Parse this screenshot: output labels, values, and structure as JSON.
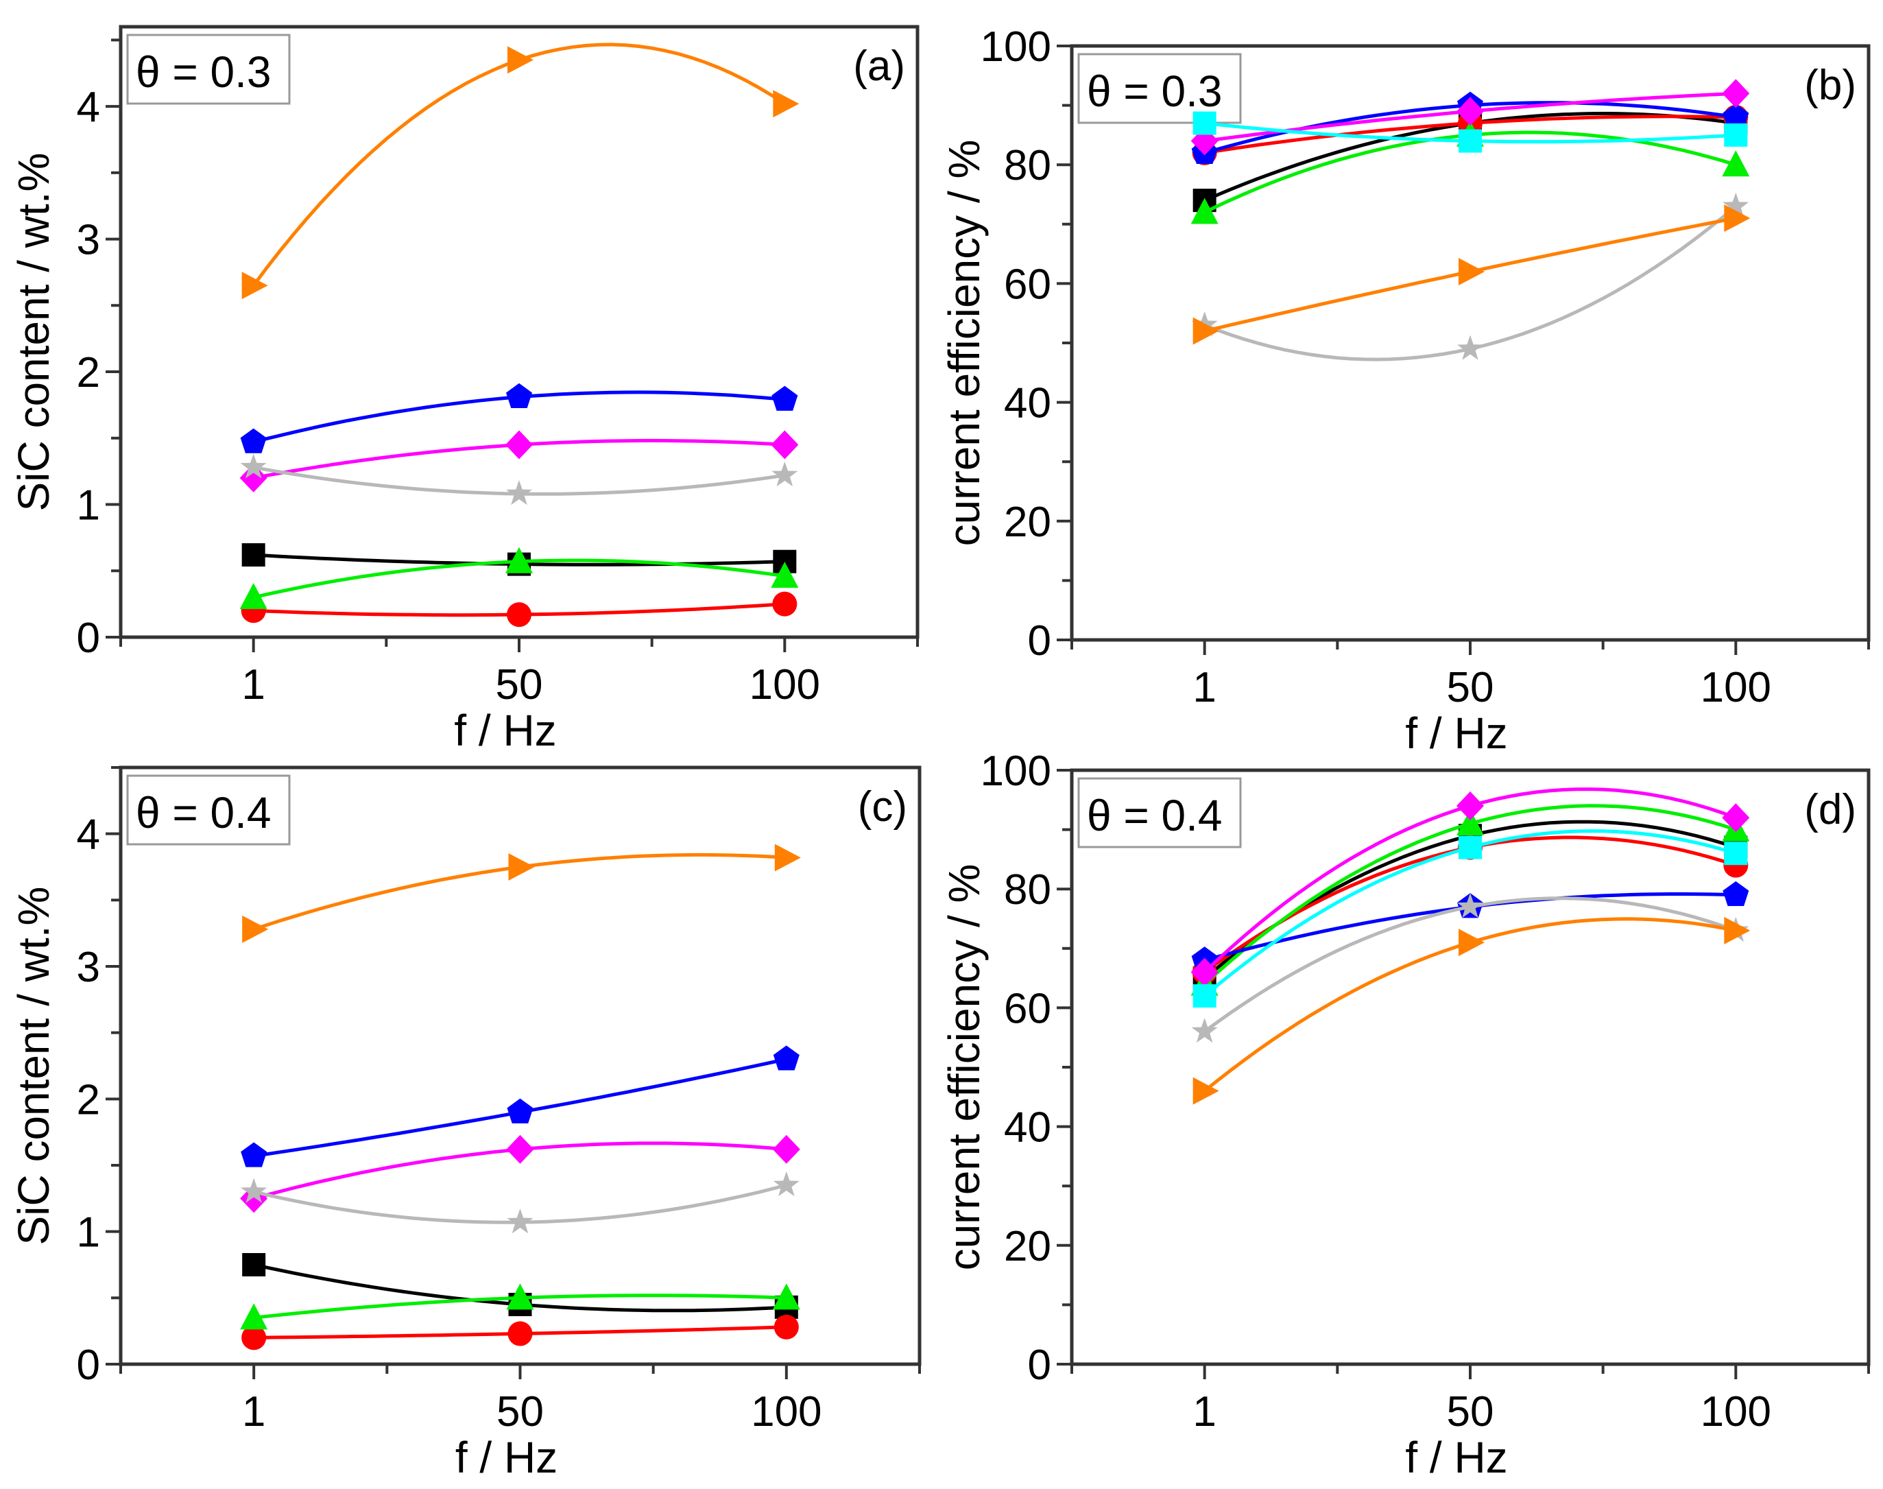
{
  "series_styles": {
    "black": {
      "color": "#000000",
      "marker": "square"
    },
    "red": {
      "color": "#ff0000",
      "marker": "circle"
    },
    "green": {
      "color": "#00ee00",
      "marker": "triangle-up"
    },
    "blue": {
      "color": "#0000ff",
      "marker": "pentagon"
    },
    "magenta": {
      "color": "#ff00ff",
      "marker": "diamond"
    },
    "gray": {
      "color": "#b8b8b8",
      "marker": "star"
    },
    "orange": {
      "color": "#ff8000",
      "marker": "triangle-right"
    },
    "cyan": {
      "color": "#00ffff",
      "marker": "square"
    }
  },
  "chart_data": [
    {
      "type": "line",
      "panel": "(a)",
      "annotation": "θ = 0.3",
      "xlabel": "f / Hz",
      "ylabel": "SiC content / wt.%",
      "categories": [
        "1",
        "50",
        "100"
      ],
      "ylim": [
        0,
        4.6
      ],
      "yticks": [
        "0",
        "1",
        "2",
        "3",
        "4"
      ],
      "series": [
        {
          "name": "black",
          "values": [
            0.62,
            0.55,
            0.57
          ]
        },
        {
          "name": "red",
          "values": [
            0.2,
            0.17,
            0.25
          ]
        },
        {
          "name": "green",
          "values": [
            0.3,
            0.57,
            0.46
          ]
        },
        {
          "name": "blue",
          "values": [
            1.47,
            1.81,
            1.79
          ]
        },
        {
          "name": "magenta",
          "values": [
            1.2,
            1.45,
            1.45
          ]
        },
        {
          "name": "gray",
          "values": [
            1.28,
            1.08,
            1.22
          ]
        },
        {
          "name": "orange",
          "values": [
            2.65,
            4.35,
            4.02
          ]
        }
      ]
    },
    {
      "type": "line",
      "panel": "(b)",
      "annotation": "θ = 0.3",
      "xlabel": "f / Hz",
      "ylabel": "current efficiency / %",
      "categories": [
        "1",
        "50",
        "100"
      ],
      "ylim": [
        0,
        100
      ],
      "yticks": [
        "0",
        "20",
        "40",
        "60",
        "80",
        "100"
      ],
      "series": [
        {
          "name": "black",
          "values": [
            74,
            87,
            87
          ]
        },
        {
          "name": "red",
          "values": [
            82,
            87,
            88
          ]
        },
        {
          "name": "green",
          "values": [
            72,
            85,
            80
          ]
        },
        {
          "name": "blue",
          "values": [
            82,
            90,
            88
          ]
        },
        {
          "name": "magenta",
          "values": [
            84,
            89,
            92
          ]
        },
        {
          "name": "gray",
          "values": [
            53,
            49,
            73
          ]
        },
        {
          "name": "orange",
          "values": [
            52,
            62,
            71
          ]
        },
        {
          "name": "cyan",
          "values": [
            87,
            84,
            85
          ]
        }
      ]
    },
    {
      "type": "line",
      "panel": "(c)",
      "annotation": "θ = 0.4",
      "xlabel": "f / Hz",
      "ylabel": "SiC content / wt.%",
      "categories": [
        "1",
        "50",
        "100"
      ],
      "ylim": [
        0,
        4.5
      ],
      "yticks": [
        "0",
        "1",
        "2",
        "3",
        "4"
      ],
      "series": [
        {
          "name": "black",
          "values": [
            0.75,
            0.45,
            0.43
          ]
        },
        {
          "name": "red",
          "values": [
            0.2,
            0.23,
            0.28
          ]
        },
        {
          "name": "green",
          "values": [
            0.35,
            0.5,
            0.5
          ]
        },
        {
          "name": "blue",
          "values": [
            1.57,
            1.9,
            2.3
          ]
        },
        {
          "name": "magenta",
          "values": [
            1.25,
            1.62,
            1.62
          ]
        },
        {
          "name": "gray",
          "values": [
            1.3,
            1.07,
            1.35
          ]
        },
        {
          "name": "orange",
          "values": [
            3.28,
            3.75,
            3.82
          ]
        }
      ]
    },
    {
      "type": "line",
      "panel": "(d)",
      "annotation": "θ = 0.4",
      "xlabel": "f / Hz",
      "ylabel": "current efficiency / %",
      "categories": [
        "1",
        "50",
        "100"
      ],
      "ylim": [
        0,
        100
      ],
      "yticks": [
        "0",
        "20",
        "40",
        "60",
        "80",
        "100"
      ],
      "series": [
        {
          "name": "black",
          "values": [
            65,
            89,
            87
          ]
        },
        {
          "name": "red",
          "values": [
            66,
            87,
            84
          ]
        },
        {
          "name": "green",
          "values": [
            64,
            91,
            90
          ]
        },
        {
          "name": "blue",
          "values": [
            68,
            77,
            79
          ]
        },
        {
          "name": "magenta",
          "values": [
            66,
            94,
            92
          ]
        },
        {
          "name": "gray",
          "values": [
            56,
            77,
            73
          ]
        },
        {
          "name": "orange",
          "values": [
            46,
            71,
            73
          ]
        },
        {
          "name": "cyan",
          "values": [
            62,
            87,
            86
          ]
        }
      ]
    }
  ]
}
